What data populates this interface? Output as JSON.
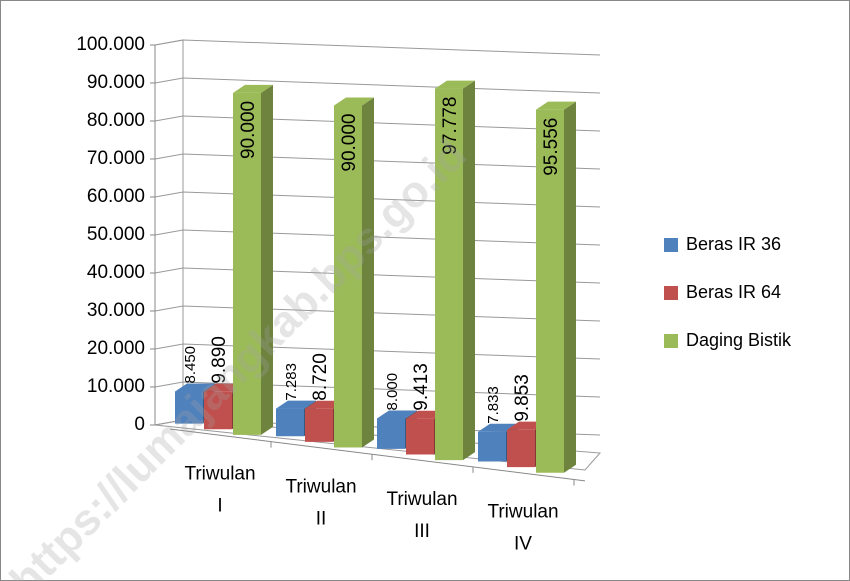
{
  "chart_data": {
    "type": "bar3d",
    "categories": [
      "Triwulan I",
      "Triwulan II",
      "Triwulan III",
      "Triwulan IV"
    ],
    "series": [
      {
        "name": "Beras IR 36",
        "color": "#4f81bd",
        "values": [
          8450,
          7283,
          8000,
          7833
        ],
        "value_labels": [
          "8.450",
          "7.283",
          "8.000",
          "7.833"
        ]
      },
      {
        "name": "Beras IR 64",
        "color": "#c0504d",
        "values": [
          9890,
          8720,
          9413,
          9853
        ],
        "value_labels": [
          "9.890",
          "8.720",
          "9.413",
          "9.853"
        ]
      },
      {
        "name": "Daging Bistik",
        "color": "#9bbb59",
        "values": [
          90000,
          90000,
          97778,
          95556
        ],
        "value_labels": [
          "90.000",
          "90.000",
          "97.778",
          "95.556"
        ]
      }
    ],
    "ylim": [
      0,
      100000
    ],
    "yticks": [
      0,
      {
        "value": 10000,
        "label": "10.000"
      },
      {
        "value": 20000,
        "label": "20.000"
      },
      {
        "value": 30000,
        "label": "30.000"
      },
      {
        "value": 40000,
        "label": "40.000"
      },
      {
        "value": 50000,
        "label": "50.000"
      },
      {
        "value": 60000,
        "label": "60.000"
      },
      {
        "value": 70000,
        "label": "70.000"
      },
      {
        "value": 80000,
        "label": "80.000"
      },
      {
        "value": 90000,
        "label": "90.000"
      },
      {
        "value": 100000,
        "label": "100.000"
      }
    ],
    "grid": true,
    "legend": "right",
    "watermark": "https://lumajangkab.bps.go.id"
  }
}
